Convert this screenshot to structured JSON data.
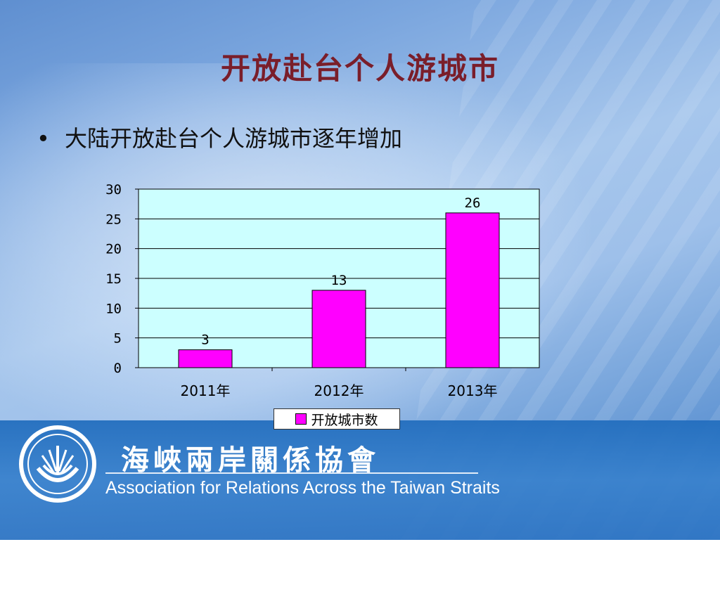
{
  "slide": {
    "title": "开放赴台个人游城市",
    "bullet": "大陆开放赴台个人游城市逐年增加"
  },
  "org": {
    "name_cn": "海峽兩岸關係協會",
    "name_en": "Association for Relations Across the Taiwan Straits"
  },
  "chart_data": {
    "type": "bar",
    "categories": [
      "2011年",
      "2012年",
      "2013年"
    ],
    "series": [
      {
        "name": "开放城市数",
        "values": [
          3,
          13,
          26
        ],
        "color": "#ff00ff"
      }
    ],
    "ylim": [
      0,
      30
    ],
    "yticks": [
      0,
      5,
      10,
      15,
      20,
      25,
      30
    ],
    "grid": true,
    "plot_background": "#ccffff",
    "legend": "bottom",
    "title": "",
    "xlabel": "",
    "ylabel": ""
  }
}
